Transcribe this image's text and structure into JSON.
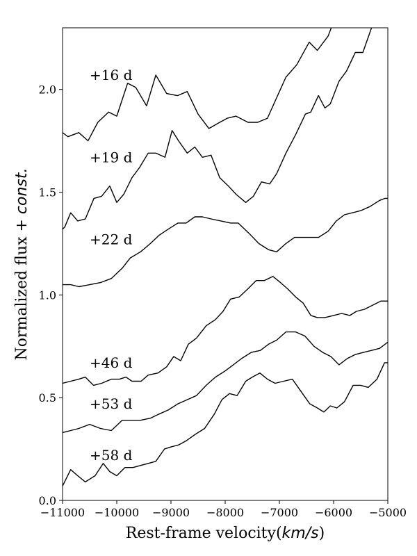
{
  "chart_data": {
    "type": "line",
    "title": "",
    "xlabel": "Rest-frame velocity",
    "xlabel_unit": "km/s",
    "ylabel": "Normalized flux + ",
    "ylabel_italic": "const.",
    "xlim": [
      -11000,
      -5000
    ],
    "ylim": [
      0.0,
      2.3
    ],
    "x_ticks": [
      -11000,
      -10000,
      -9000,
      -8000,
      -7000,
      -6000,
      -5000
    ],
    "x_tick_labels": [
      "−11000",
      "−10000",
      "−9000",
      "−8000",
      "−7000",
      "−6000",
      "−5000"
    ],
    "y_ticks": [
      0.0,
      0.5,
      1.0,
      1.5,
      2.0
    ],
    "y_tick_labels": [
      "0.0",
      "0.5",
      "1.0",
      "1.5",
      "2.0"
    ],
    "grid": false,
    "line_color": "#000000",
    "series": [
      {
        "name": "+16 d",
        "label_pos": [
          -10500,
          2.07
        ],
        "x": [
          -11000,
          -10900,
          -10700,
          -10530,
          -10350,
          -10150,
          -10000,
          -9800,
          -9650,
          -9450,
          -9280,
          -9080,
          -8880,
          -8700,
          -8500,
          -8300,
          -8100,
          -7960,
          -7800,
          -7580,
          -7400,
          -7220,
          -7050,
          -6880,
          -6680,
          -6450,
          -6300,
          -6100,
          -6000
        ],
        "y": [
          1.79,
          1.77,
          1.79,
          1.75,
          1.84,
          1.89,
          1.87,
          2.03,
          2.01,
          1.92,
          2.07,
          1.98,
          1.97,
          1.99,
          1.88,
          1.81,
          1.84,
          1.86,
          1.87,
          1.84,
          1.84,
          1.86,
          1.96,
          2.06,
          2.12,
          2.23,
          2.19,
          2.26,
          2.33
        ]
      },
      {
        "name": "+19 d",
        "label_pos": [
          -10500,
          1.67
        ],
        "x": [
          -11000,
          -10960,
          -10850,
          -10720,
          -10580,
          -10420,
          -10280,
          -10130,
          -10000,
          -9870,
          -9720,
          -9580,
          -9420,
          -9280,
          -9110,
          -8980,
          -8860,
          -8700,
          -8560,
          -8420,
          -8260,
          -8100,
          -7940,
          -7800,
          -7620,
          -7480,
          -7330,
          -7180,
          -7050,
          -6880,
          -6700,
          -6520,
          -6420,
          -6280,
          -6160,
          -6060,
          -5900,
          -5760,
          -5600,
          -5460,
          -5300,
          -5250
        ],
        "y": [
          1.32,
          1.33,
          1.4,
          1.36,
          1.37,
          1.47,
          1.48,
          1.53,
          1.45,
          1.49,
          1.57,
          1.62,
          1.69,
          1.69,
          1.67,
          1.8,
          1.75,
          1.69,
          1.72,
          1.67,
          1.68,
          1.57,
          1.53,
          1.49,
          1.45,
          1.48,
          1.55,
          1.54,
          1.59,
          1.69,
          1.78,
          1.88,
          1.89,
          1.97,
          1.91,
          1.93,
          2.04,
          2.09,
          2.18,
          2.18,
          2.3,
          2.33
        ]
      },
      {
        "name": "+22 d",
        "label_pos": [
          -10500,
          1.27
        ],
        "x": [
          -11000,
          -10850,
          -10700,
          -10500,
          -10300,
          -10100,
          -9900,
          -9750,
          -9560,
          -9380,
          -9220,
          -9050,
          -8870,
          -8720,
          -8560,
          -8420,
          -8260,
          -8080,
          -7900,
          -7760,
          -7560,
          -7380,
          -7200,
          -7050,
          -6880,
          -6720,
          -6580,
          -6430,
          -6280,
          -6100,
          -5950,
          -5800,
          -5650,
          -5500,
          -5330,
          -5150,
          -5050,
          -5000
        ],
        "y": [
          1.05,
          1.05,
          1.04,
          1.05,
          1.06,
          1.08,
          1.13,
          1.18,
          1.21,
          1.25,
          1.29,
          1.32,
          1.35,
          1.35,
          1.38,
          1.38,
          1.37,
          1.36,
          1.35,
          1.35,
          1.3,
          1.25,
          1.22,
          1.21,
          1.25,
          1.28,
          1.28,
          1.28,
          1.28,
          1.31,
          1.36,
          1.39,
          1.4,
          1.41,
          1.43,
          1.46,
          1.47,
          1.47
        ]
      },
      {
        "name": "+46 d",
        "label_pos": [
          -10500,
          0.67
        ],
        "x": [
          -11000,
          -10850,
          -10700,
          -10580,
          -10430,
          -10280,
          -10100,
          -9950,
          -9830,
          -9720,
          -9550,
          -9420,
          -9240,
          -9080,
          -8950,
          -8820,
          -8680,
          -8530,
          -8350,
          -8180,
          -8040,
          -7900,
          -7740,
          -7580,
          -7430,
          -7280,
          -7120,
          -6980,
          -6850,
          -6700,
          -6560,
          -6420,
          -6300,
          -6160,
          -6000,
          -5850,
          -5700,
          -5580,
          -5430,
          -5280,
          -5130,
          -5000
        ],
        "y": [
          0.57,
          0.58,
          0.59,
          0.6,
          0.56,
          0.57,
          0.59,
          0.59,
          0.6,
          0.58,
          0.58,
          0.61,
          0.62,
          0.65,
          0.7,
          0.68,
          0.76,
          0.79,
          0.85,
          0.88,
          0.92,
          0.98,
          0.99,
          1.03,
          1.07,
          1.07,
          1.09,
          1.06,
          1.03,
          0.99,
          0.96,
          0.9,
          0.89,
          0.89,
          0.9,
          0.91,
          0.9,
          0.92,
          0.93,
          0.95,
          0.97,
          0.97
        ]
      },
      {
        "name": "+53 d",
        "label_pos": [
          -10500,
          0.47
        ],
        "x": [
          -11000,
          -10850,
          -10700,
          -10500,
          -10300,
          -10100,
          -9900,
          -9750,
          -9560,
          -9380,
          -9220,
          -9050,
          -8870,
          -8700,
          -8530,
          -8350,
          -8180,
          -8000,
          -7850,
          -7700,
          -7520,
          -7350,
          -7200,
          -7050,
          -6880,
          -6700,
          -6530,
          -6360,
          -6200,
          -6050,
          -5900,
          -5750,
          -5600,
          -5450,
          -5300,
          -5150,
          -5000
        ],
        "y": [
          0.33,
          0.34,
          0.35,
          0.37,
          0.35,
          0.34,
          0.39,
          0.39,
          0.39,
          0.4,
          0.42,
          0.44,
          0.47,
          0.49,
          0.51,
          0.56,
          0.6,
          0.63,
          0.66,
          0.69,
          0.72,
          0.73,
          0.76,
          0.78,
          0.82,
          0.82,
          0.8,
          0.75,
          0.72,
          0.7,
          0.66,
          0.69,
          0.71,
          0.72,
          0.73,
          0.74,
          0.77
        ]
      },
      {
        "name": "+58 d",
        "label_pos": [
          -10500,
          0.22
        ],
        "x": [
          -11000,
          -10850,
          -10720,
          -10580,
          -10400,
          -10250,
          -10130,
          -10000,
          -9850,
          -9700,
          -9560,
          -9420,
          -9280,
          -9120,
          -9000,
          -8860,
          -8720,
          -8560,
          -8380,
          -8200,
          -8060,
          -7920,
          -7780,
          -7620,
          -7500,
          -7360,
          -7220,
          -7080,
          -6920,
          -6760,
          -6600,
          -6440,
          -6300,
          -6180,
          -6060,
          -5940,
          -5800,
          -5640,
          -5500,
          -5360,
          -5200,
          -5060,
          -5000
        ],
        "y": [
          0.07,
          0.15,
          0.12,
          0.09,
          0.12,
          0.18,
          0.14,
          0.12,
          0.16,
          0.16,
          0.17,
          0.18,
          0.19,
          0.25,
          0.26,
          0.27,
          0.29,
          0.32,
          0.35,
          0.42,
          0.49,
          0.52,
          0.51,
          0.58,
          0.6,
          0.62,
          0.59,
          0.57,
          0.58,
          0.59,
          0.53,
          0.47,
          0.45,
          0.43,
          0.46,
          0.45,
          0.48,
          0.56,
          0.56,
          0.55,
          0.59,
          0.67,
          0.67
        ]
      }
    ]
  }
}
